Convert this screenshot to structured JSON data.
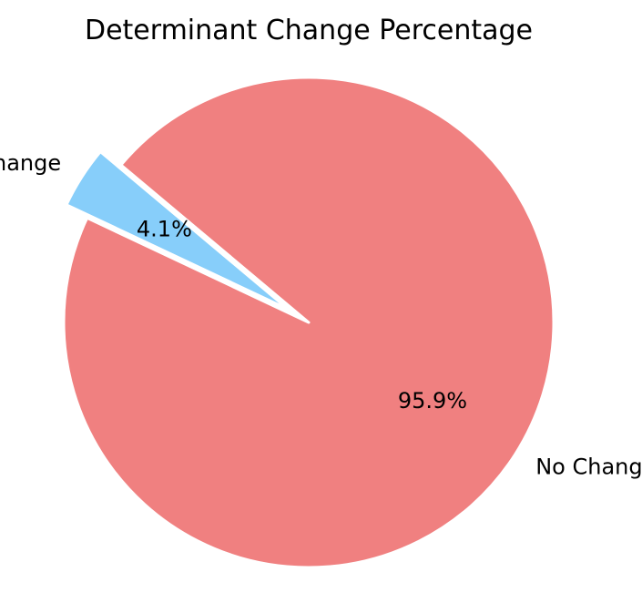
{
  "chart_data": {
    "type": "pie",
    "title": "Determinant Change Percentage",
    "categories": [
      "Change",
      "No Change"
    ],
    "values": [
      4.1,
      95.9
    ],
    "value_labels": [
      "4.1%",
      "95.9%"
    ],
    "colors": [
      "#87CEFA",
      "#F08080"
    ],
    "exploded": [
      "Change"
    ],
    "edge_color": "#ffffff",
    "legend": "none"
  }
}
